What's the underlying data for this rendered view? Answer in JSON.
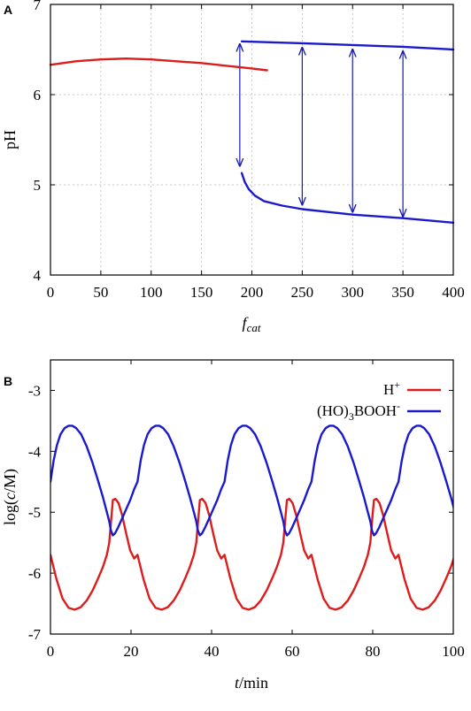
{
  "chart_data": [
    {
      "panel_label": "A",
      "type": "line",
      "xlabel": "fcat",
      "xlabel_main": "f",
      "xlabel_sub": "cat",
      "ylabel": "pH",
      "xlim": [
        0,
        400
      ],
      "ylim": [
        4,
        7
      ],
      "xticks": [
        "0",
        "50",
        "100",
        "150",
        "200",
        "250",
        "300",
        "350",
        "400"
      ],
      "yticks": [
        "4",
        "5",
        "6",
        "7"
      ],
      "grid": true,
      "colors": {
        "red": "#dd1c1c",
        "blue": "#1a1acc"
      },
      "series": [
        {
          "color": "red",
          "x": [
            0,
            25,
            50,
            75,
            100,
            125,
            150,
            175,
            200,
            215
          ],
          "y": [
            6.33,
            6.37,
            6.39,
            6.4,
            6.39,
            6.37,
            6.35,
            6.32,
            6.29,
            6.27
          ]
        },
        {
          "color": "blue",
          "x": [
            190,
            250,
            300,
            350,
            400
          ],
          "y": [
            6.59,
            6.57,
            6.55,
            6.53,
            6.5
          ]
        },
        {
          "color": "blue",
          "x": [
            190,
            193,
            197,
            203,
            212,
            230,
            250,
            300,
            350,
            400
          ],
          "y": [
            5.13,
            5.03,
            4.95,
            4.88,
            4.82,
            4.77,
            4.73,
            4.67,
            4.63,
            4.58
          ]
        }
      ],
      "double_arrows": [
        {
          "x": 188,
          "y_top": 6.59,
          "y_bottom": 5.18
        },
        {
          "x": 250,
          "y_top": 6.55,
          "y_bottom": 4.75
        },
        {
          "x": 300,
          "y_top": 6.53,
          "y_bottom": 4.67
        },
        {
          "x": 350,
          "y_top": 6.51,
          "y_bottom": 4.62
        }
      ]
    },
    {
      "panel_label": "B",
      "type": "line",
      "xlabel": "t/min",
      "xlabel_italic": "t",
      "xlabel_rest": "/min",
      "ylabel": "log(c/M)",
      "ylabel_pre": "log(",
      "ylabel_italic": "c",
      "ylabel_post": "/M)",
      "xlim": [
        0,
        100
      ],
      "ylim": [
        -7,
        -2.5
      ],
      "xticks": [
        "0",
        "20",
        "40",
        "60",
        "80",
        "100"
      ],
      "yticks": [
        "-7",
        "-6",
        "-5",
        "-4",
        "-3"
      ],
      "grid": false,
      "legend_position": "top-right",
      "period": 21.6,
      "series": [
        {
          "name": "H+",
          "name_base": "H",
          "name_sup": "+",
          "color": "#dd1c1c",
          "x": [
            0,
            1.5,
            3,
            4.5,
            6,
            7.5,
            9,
            10.5,
            12,
            13,
            14,
            14.6,
            15.1,
            15.5,
            16.1,
            16.9,
            17.8,
            18.8,
            19.8,
            20.8,
            21.6
          ],
          "y": [
            -5.7,
            -6.1,
            -6.42,
            -6.57,
            -6.6,
            -6.56,
            -6.45,
            -6.28,
            -6.06,
            -5.9,
            -5.7,
            -5.5,
            -5.1,
            -4.8,
            -4.78,
            -4.85,
            -5.05,
            -5.35,
            -5.63,
            -5.76,
            -5.7
          ]
        },
        {
          "name": "(HO)3BOOH-",
          "name_pre": "(HO)",
          "name_sub": "3",
          "name_post": "BOOH",
          "name_sup": "-",
          "color": "#1a1acc",
          "x": [
            0,
            0.8,
            1.6,
            2.5,
            3.5,
            4.5,
            5.4,
            6.4,
            7.6,
            9,
            10.4,
            11.8,
            13,
            14,
            14.6,
            15,
            15.5,
            16,
            16.8,
            17.8,
            18.8,
            19.8,
            20.8,
            21.6
          ],
          "y": [
            -4.5,
            -4.15,
            -3.9,
            -3.72,
            -3.62,
            -3.58,
            -3.58,
            -3.62,
            -3.72,
            -3.92,
            -4.18,
            -4.48,
            -4.75,
            -5.0,
            -5.15,
            -5.3,
            -5.38,
            -5.35,
            -5.25,
            -5.1,
            -4.95,
            -4.8,
            -4.62,
            -4.5
          ]
        }
      ]
    }
  ]
}
